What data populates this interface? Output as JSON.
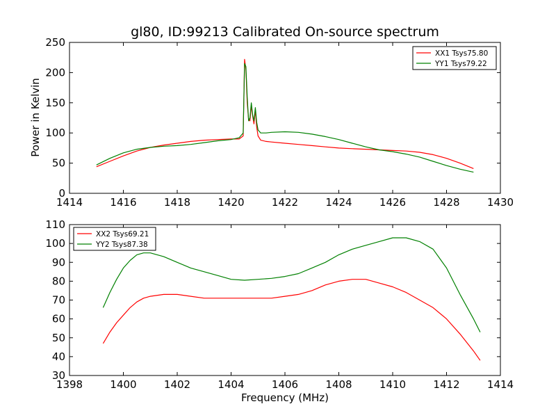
{
  "figure": {
    "title": "gl80, ID:99213 Calibrated On-source spectrum",
    "ylabel": "Power in Kelvin",
    "xlabel": "Frequency (MHz)"
  },
  "chart_data": [
    {
      "type": "line",
      "title": "gl80, ID:99213 Calibrated On-source spectrum",
      "xlabel": "",
      "ylabel": "Power in Kelvin",
      "xlim": [
        1414,
        1430
      ],
      "ylim": [
        0,
        250
      ],
      "xticks": [
        1414,
        1416,
        1418,
        1420,
        1422,
        1424,
        1426,
        1428,
        1430
      ],
      "yticks": [
        0,
        50,
        100,
        150,
        200,
        250
      ],
      "grid": false,
      "legend_position": "top-right",
      "series": [
        {
          "name": "XX1 Tsys75.80",
          "color": "#ff0000",
          "x": [
            1415.0,
            1415.5,
            1416.0,
            1416.5,
            1417.0,
            1417.5,
            1418.0,
            1418.5,
            1419.0,
            1419.5,
            1420.0,
            1420.3,
            1420.45,
            1420.5,
            1420.55,
            1420.6,
            1420.65,
            1420.7,
            1420.75,
            1420.8,
            1420.85,
            1420.9,
            1420.95,
            1421.0,
            1421.1,
            1421.3,
            1421.5,
            1422.0,
            1422.5,
            1423.0,
            1423.5,
            1424.0,
            1424.5,
            1425.0,
            1425.5,
            1426.0,
            1426.5,
            1427.0,
            1427.5,
            1428.0,
            1428.5,
            1429.0
          ],
          "values": [
            44,
            53,
            62,
            70,
            76,
            80,
            83,
            86,
            88,
            89,
            90,
            90,
            95,
            222,
            205,
            150,
            122,
            120,
            145,
            128,
            115,
            138,
            110,
            95,
            88,
            86,
            85,
            83,
            81,
            79,
            77,
            75,
            74,
            73,
            72,
            71,
            70,
            68,
            64,
            58,
            50,
            41
          ]
        },
        {
          "name": "YY1 Tsys79.22",
          "color": "#008000",
          "x": [
            1415.0,
            1415.5,
            1416.0,
            1416.5,
            1417.0,
            1417.5,
            1418.0,
            1418.5,
            1419.0,
            1419.5,
            1420.0,
            1420.3,
            1420.45,
            1420.5,
            1420.55,
            1420.6,
            1420.65,
            1420.7,
            1420.75,
            1420.8,
            1420.85,
            1420.9,
            1420.95,
            1421.0,
            1421.1,
            1421.3,
            1421.5,
            1422.0,
            1422.5,
            1423.0,
            1423.5,
            1424.0,
            1424.5,
            1425.0,
            1425.5,
            1426.0,
            1426.5,
            1427.0,
            1427.5,
            1428.0,
            1428.5,
            1429.0
          ],
          "values": [
            47,
            58,
            67,
            73,
            76,
            78,
            79,
            81,
            84,
            87,
            89,
            92,
            100,
            215,
            210,
            160,
            120,
            125,
            150,
            130,
            120,
            142,
            118,
            105,
            100,
            100,
            101,
            102,
            101,
            98,
            94,
            89,
            83,
            77,
            72,
            69,
            65,
            60,
            53,
            46,
            40,
            35
          ]
        }
      ]
    },
    {
      "type": "line",
      "title": "",
      "xlabel": "Frequency (MHz)",
      "ylabel": "",
      "xlim": [
        1398,
        1414
      ],
      "ylim": [
        30,
        110
      ],
      "xticks": [
        1398,
        1400,
        1402,
        1404,
        1406,
        1408,
        1410,
        1412,
        1414
      ],
      "yticks": [
        30,
        40,
        50,
        60,
        70,
        80,
        90,
        100,
        110
      ],
      "grid": false,
      "legend_position": "top-left",
      "series": [
        {
          "name": "XX2 Tsys69.21",
          "color": "#ff0000",
          "x": [
            1399.25,
            1399.5,
            1399.75,
            1400.0,
            1400.25,
            1400.5,
            1400.75,
            1401.0,
            1401.5,
            1402.0,
            1402.5,
            1403.0,
            1403.5,
            1404.0,
            1404.5,
            1405.0,
            1405.5,
            1406.0,
            1406.5,
            1407.0,
            1407.5,
            1408.0,
            1408.5,
            1409.0,
            1409.5,
            1410.0,
            1410.5,
            1411.0,
            1411.5,
            1412.0,
            1412.5,
            1413.0,
            1413.25
          ],
          "values": [
            47,
            53,
            58,
            62,
            66,
            69,
            71,
            72,
            73,
            73,
            72,
            71,
            71,
            71,
            71,
            71,
            71,
            72,
            73,
            75,
            78,
            80,
            81,
            81,
            79,
            77,
            74,
            70,
            66,
            60,
            52,
            43,
            38
          ]
        },
        {
          "name": "YY2 Tsys87.38",
          "color": "#008000",
          "x": [
            1399.25,
            1399.5,
            1399.75,
            1400.0,
            1400.25,
            1400.5,
            1400.75,
            1401.0,
            1401.5,
            1402.0,
            1402.5,
            1403.0,
            1403.5,
            1404.0,
            1404.5,
            1405.0,
            1405.5,
            1406.0,
            1406.5,
            1407.0,
            1407.5,
            1408.0,
            1408.5,
            1409.0,
            1409.5,
            1410.0,
            1410.5,
            1411.0,
            1411.5,
            1412.0,
            1412.5,
            1413.0,
            1413.25
          ],
          "values": [
            66,
            74,
            81,
            87,
            91,
            94,
            95,
            95,
            93,
            90,
            87,
            85,
            83,
            81,
            80.5,
            81,
            81.5,
            82.5,
            84,
            87,
            90,
            94,
            97,
            99,
            101,
            103,
            103,
            101,
            97,
            87,
            73,
            60,
            53
          ]
        }
      ]
    }
  ]
}
